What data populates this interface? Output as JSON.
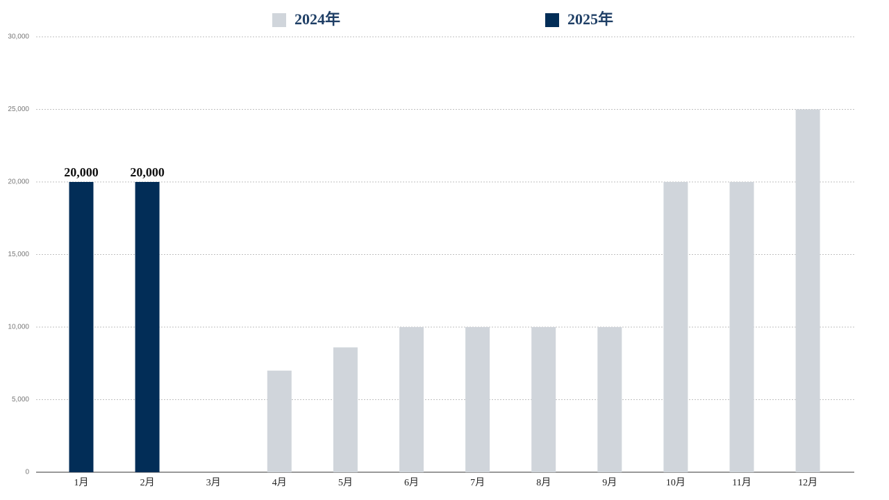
{
  "chart_data": {
    "type": "bar",
    "categories": [
      "1月",
      "2月",
      "3月",
      "4月",
      "5月",
      "6月",
      "7月",
      "8月",
      "9月",
      "10月",
      "11月",
      "12月"
    ],
    "series": [
      {
        "name": "2024年",
        "color": "#d0d5db",
        "values": [
          null,
          null,
          null,
          7000,
          8600,
          10000,
          10000,
          10000,
          10000,
          20000,
          20000,
          25000
        ]
      },
      {
        "name": "2025年",
        "color": "#022d57",
        "values": [
          20000,
          20000,
          null,
          null,
          null,
          null,
          null,
          null,
          null,
          null,
          null,
          null
        ],
        "value_labels": [
          "20,000",
          "20,000",
          null,
          null,
          null,
          null,
          null,
          null,
          null,
          null,
          null,
          null
        ]
      }
    ],
    "ylim": [
      0,
      30000
    ],
    "yticks": [
      0,
      {
        "value": 5000,
        "label": "5,000"
      },
      {
        "value": 10000,
        "label": "10,000"
      },
      {
        "value": 15000,
        "label": "15,000"
      },
      {
        "value": 20000,
        "label": "20,000"
      },
      {
        "value": 25000,
        "label": "25,000"
      },
      {
        "value": 30000,
        "label": "30,000"
      }
    ],
    "grid": true,
    "legend": "top"
  }
}
